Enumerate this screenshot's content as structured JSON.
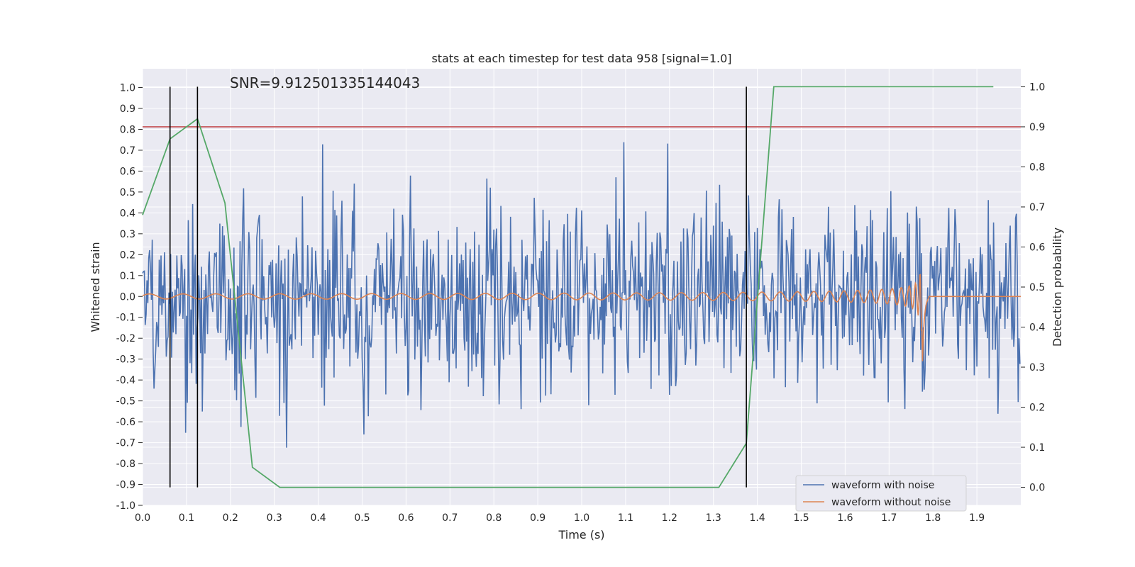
{
  "chart_data": {
    "type": "line",
    "title": "stats at each timestep for test data 958 [signal=1.0]",
    "xlabel": "Time (s)",
    "ylabel": "Whitened strain",
    "y2label": "Detection probability",
    "annotation": "SNR=9.912501335144043",
    "xlim": [
      0.0,
      2.0
    ],
    "ylim": [
      -1.0,
      1.09
    ],
    "y2lim": [
      -0.045,
      1.045
    ],
    "x_ticks": [
      "0.0",
      "0.1",
      "0.2",
      "0.3",
      "0.4",
      "0.5",
      "0.6",
      "0.7",
      "0.8",
      "0.9",
      "1.0",
      "1.1",
      "1.2",
      "1.3",
      "1.4",
      "1.5",
      "1.6",
      "1.7",
      "1.8",
      "1.9"
    ],
    "y_ticks": [
      "-1.0",
      "-0.9",
      "-0.8",
      "-0.7",
      "-0.6",
      "-0.5",
      "-0.4",
      "-0.3",
      "-0.2",
      "-0.1",
      "0.0",
      "0.1",
      "0.2",
      "0.3",
      "0.4",
      "0.5",
      "0.6",
      "0.7",
      "0.8",
      "0.9",
      "1.0"
    ],
    "y2_ticks": [
      "0.0",
      "0.1",
      "0.2",
      "0.3",
      "0.4",
      "0.5",
      "0.6",
      "0.7",
      "0.8",
      "0.9",
      "1.0"
    ],
    "grid": true,
    "legend_position": "lower-right",
    "series": [
      {
        "name": "waveform with noise",
        "color": "#4c72b0",
        "kind": "noise"
      },
      {
        "name": "waveform without noise",
        "color": "#dd8452",
        "kind": "chirp"
      }
    ],
    "detection_probability": {
      "color": "#55a868",
      "x": [
        0.0,
        0.0625,
        0.125,
        0.1875,
        0.25,
        0.3125,
        1.3125,
        1.375,
        1.4375,
        1.9375
      ],
      "y": [
        0.68,
        0.87,
        0.92,
        0.71,
        0.05,
        0.0,
        0.0,
        0.11,
        1.0,
        1.0
      ]
    },
    "threshold": {
      "y2": 0.9,
      "color": "#c44e52"
    },
    "markers": {
      "x": [
        0.0625,
        0.125,
        1.375
      ],
      "y2_range": [
        0.0,
        1.0
      ],
      "color": "#000000"
    }
  }
}
